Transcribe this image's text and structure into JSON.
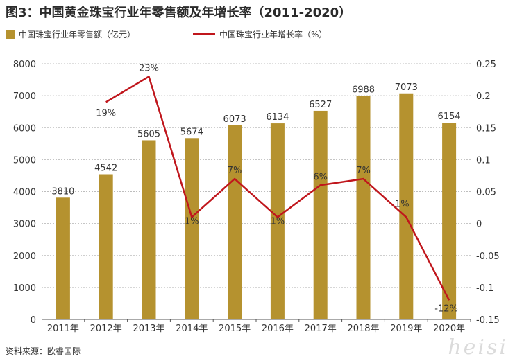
{
  "title": "图3：中国黄金珠宝行业年零售额及年增长率（2011-2020）",
  "legend": {
    "bar_label": "中国珠宝行业年零售额（亿元）",
    "line_label": "中国珠宝行业年增长率（%）"
  },
  "source": "资料来源：欧睿国际",
  "watermark": "heisi",
  "colors": {
    "bar": "#b5922f",
    "line": "#c0161c",
    "grid": "#bdbdbd",
    "axis": "#555555",
    "text": "#333333"
  },
  "chart_data": {
    "type": "bar",
    "categories": [
      "2011年",
      "2012年",
      "2013年",
      "2014年",
      "2015年",
      "2016年",
      "2017年",
      "2018年",
      "2019年",
      "2020年"
    ],
    "series": [
      {
        "name": "中国珠宝行业年零售额（亿元）",
        "type": "bar",
        "axis": "left",
        "values": [
          3810,
          4542,
          5605,
          5674,
          6073,
          6134,
          6527,
          6988,
          7073,
          6154
        ],
        "labels": [
          "3810",
          "4542",
          "5605",
          "5674",
          "6073",
          "6134",
          "6527",
          "6988",
          "7073",
          "6154"
        ]
      },
      {
        "name": "中国珠宝行业年增长率（%）",
        "type": "line",
        "axis": "right",
        "values": [
          null,
          0.19,
          0.23,
          0.01,
          0.07,
          0.01,
          0.06,
          0.07,
          0.01,
          -0.12
        ],
        "labels": [
          "",
          "19%",
          "23%",
          "1%",
          "7%",
          "1%",
          "6%",
          "7%",
          "1%",
          "-12%"
        ]
      }
    ],
    "y_left": {
      "lim": [
        0,
        8000
      ],
      "ticks": [
        0,
        1000,
        2000,
        3000,
        4000,
        5000,
        6000,
        7000,
        8000
      ],
      "tick_labels": [
        "0",
        "1000",
        "2000",
        "3000",
        "4000",
        "5000",
        "6000",
        "7000",
        "8000"
      ]
    },
    "y_right": {
      "lim": [
        -0.15,
        0.25
      ],
      "ticks": [
        -0.15,
        -0.1,
        -0.05,
        0,
        0.05,
        0.1,
        0.15,
        0.2,
        0.25
      ],
      "tick_labels": [
        "-0.15",
        "-0.1",
        "-0.05",
        "0",
        "0.05",
        "0.1",
        "0.15",
        "0.2",
        "0.25"
      ]
    },
    "grid": true,
    "legend_position": "top-left"
  }
}
